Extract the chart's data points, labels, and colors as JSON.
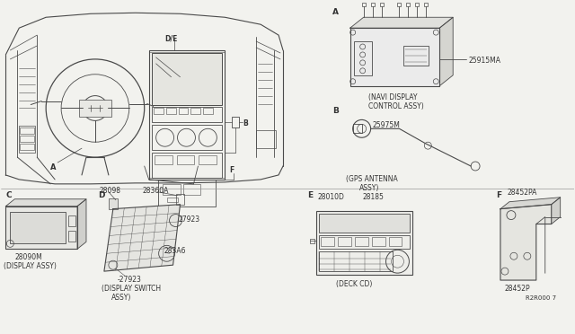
{
  "fig_bg": "#f2f2ee",
  "line_color": "#4a4a4a",
  "labels": {
    "A_main": "A",
    "B_main": "B",
    "C_main": "C",
    "D_main": "D",
    "E_main": "E",
    "F_main": "F",
    "DE_label": "D/E",
    "B_label": "B",
    "F_label": "F",
    "A_label_dash": "A",
    "part_25915MA": "25915MA",
    "part_25975M": "25975M",
    "navi_label1": "(NAVI DISPLAY",
    "navi_label2": "CONTROL ASSY)",
    "gps_label1": "(GPS ANTENNA",
    "gps_label2": "ASSY)",
    "part_28090M": "28090M",
    "label_display_assy": "(DISPLAY ASSY)",
    "part_28098": "28098",
    "part_28360A": "28360A",
    "part_27923a": "27923",
    "part_283A6": "283A6",
    "part_27923b": "-27923",
    "label_display_switch1": "(DISPLAY SWITCH",
    "label_display_switch2": "ASSY)",
    "part_28010D": "28010D",
    "part_28185": "28185",
    "label_deck_cd": "(DECK CD)",
    "part_28452PA": "28452PA",
    "part_28452P": "28452P",
    "ref_num": "R2R000 7"
  }
}
